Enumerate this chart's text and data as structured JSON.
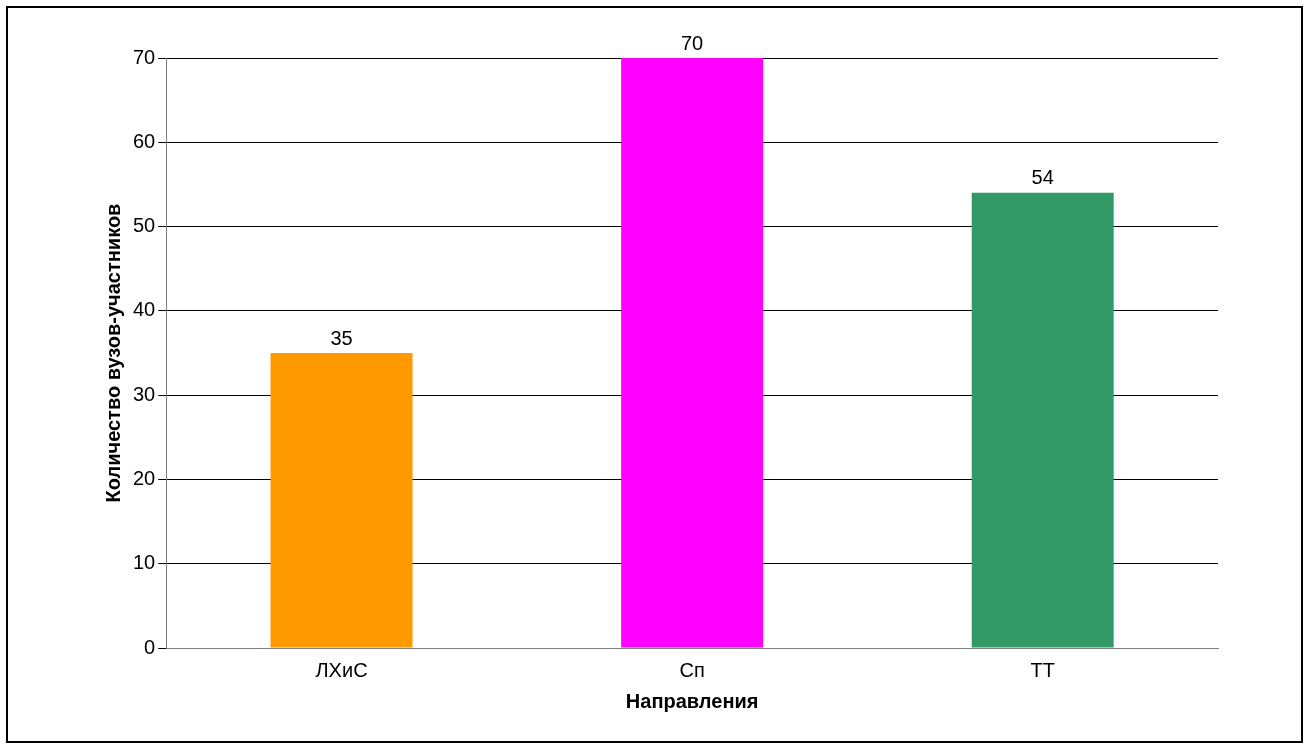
{
  "chart_data": {
    "type": "bar",
    "categories": [
      "ЛХиС",
      "Сп",
      "ТТ"
    ],
    "values": [
      35,
      70,
      54
    ],
    "colors": [
      "#ff9900",
      "#ff00ff",
      "#339966"
    ],
    "xlabel": "Направления",
    "ylabel": "Количество вузов-участников",
    "ylim": [
      0,
      70
    ],
    "yticks": [
      0,
      10,
      20,
      30,
      40,
      50,
      60,
      70
    ],
    "grid": "y",
    "data_labels": true
  }
}
